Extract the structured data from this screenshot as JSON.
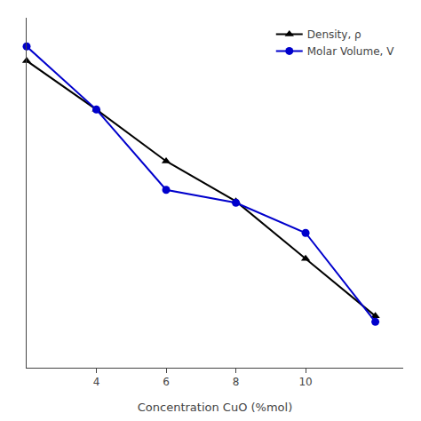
{
  "chart_data": {
    "type": "line",
    "x_label": "Concentration CuO (%mol)",
    "x": [
      2,
      4,
      6,
      8,
      10,
      12
    ],
    "series": [
      {
        "name": "Density, ρ",
        "color": "#000000",
        "marker": "triangle",
        "values": [
          0.95,
          0.78,
          0.6,
          0.46,
          0.26,
          0.06
        ]
      },
      {
        "name": "Molar Volume, V",
        "color": "#0000cc",
        "marker": "circle",
        "values": [
          1.0,
          0.78,
          0.5,
          0.455,
          0.35,
          0.04
        ]
      }
    ],
    "xlim": [
      2.0,
      12.8
    ],
    "xticks": [
      4,
      6,
      8,
      10
    ],
    "ylim": [
      -0.12,
      1.1
    ],
    "grid": false,
    "legend": "upper right",
    "tick_labels": "x"
  }
}
